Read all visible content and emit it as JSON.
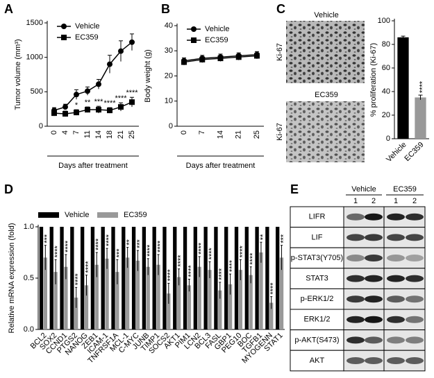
{
  "panel_labels": [
    "A",
    "B",
    "C",
    "D",
    "E"
  ],
  "chart_data": [
    {
      "type": "line",
      "ylabel": "Tumor volume (mm³)",
      "xlabel": "Days after treatment",
      "categories": [
        "0",
        "4",
        "7",
        "11",
        "14",
        "18",
        "21",
        "25"
      ],
      "series": [
        {
          "name": "Vehicle",
          "color": "#000000",
          "marker": "circle",
          "values": [
            230,
            280,
            460,
            510,
            610,
            900,
            1090,
            1220
          ],
          "errors": [
            40,
            40,
            70,
            60,
            70,
            130,
            150,
            120
          ]
        },
        {
          "name": "EC359",
          "color": "#000000",
          "marker": "square",
          "values": [
            190,
            180,
            200,
            240,
            240,
            230,
            280,
            350
          ],
          "errors": [
            40,
            40,
            40,
            40,
            50,
            40,
            60,
            70
          ]
        }
      ],
      "annotations": [
        null,
        null,
        "*",
        "**",
        "***",
        "****",
        "****",
        "****"
      ],
      "ylim": [
        0,
        1500
      ],
      "yticks": [
        0,
        500,
        1000,
        1500
      ],
      "legend": "upper left"
    },
    {
      "type": "line",
      "ylabel": "Body weight (g)",
      "xlabel": "Days after treatment",
      "categories": [
        "0",
        "7",
        "14",
        "21",
        "25"
      ],
      "series": [
        {
          "name": "Vehicle",
          "color": "#000000",
          "marker": "circle",
          "values": [
            26,
            27,
            27.5,
            28,
            28.5
          ],
          "errors": [
            1.2,
            1.2,
            1.2,
            1.2,
            1.2
          ]
        },
        {
          "name": "EC359",
          "color": "#000000",
          "marker": "square",
          "values": [
            25.5,
            26.5,
            27,
            27.5,
            28
          ],
          "errors": [
            1.2,
            1.2,
            1.2,
            1.2,
            1.2
          ]
        }
      ],
      "ylim": [
        0,
        40
      ],
      "yticks": [
        0,
        10,
        20,
        30,
        40
      ],
      "legend": "upper left"
    },
    {
      "type": "bar",
      "ylabel": "% proliferation (Ki-67)",
      "categories": [
        "Vehicle",
        "EC359"
      ],
      "values": [
        86,
        35
      ],
      "errors": [
        1,
        2
      ],
      "colors": [
        "#000000",
        "#999999"
      ],
      "annotations": [
        null,
        "****"
      ],
      "ylim": [
        0,
        100
      ],
      "yticks": [
        0,
        20,
        40,
        60,
        80,
        100
      ]
    },
    {
      "type": "bar",
      "ylabel": "Relative mRNA expression (fold)",
      "categories": [
        "BCL2",
        "SOX2",
        "CCND1",
        "PTGS2",
        "NANOG",
        "ZEB1",
        "ICAM-1",
        "TNFRSF1A",
        "MCL-1",
        "C-MYC",
        "JUNB",
        "TIMP1",
        "SOCS2",
        "AKT1",
        "PIM1",
        "LCN2",
        "BCL3",
        "FASL",
        "GBP1",
        "PEG10",
        "BOC",
        "TGFB1",
        "MYOGENN",
        "STAT1"
      ],
      "series": [
        {
          "name": "Vehicle",
          "color": "#000000",
          "values": [
            1,
            1,
            1,
            1,
            1,
            1,
            1,
            1,
            1,
            1,
            1,
            1,
            1,
            1,
            1,
            1,
            1,
            1,
            1,
            1,
            1,
            1,
            1,
            1
          ]
        },
        {
          "name": "EC359",
          "color": "#999999",
          "values": [
            0.7,
            0.56,
            0.61,
            0.31,
            0.43,
            0.63,
            0.69,
            0.56,
            0.7,
            0.67,
            0.61,
            0.63,
            0.35,
            0.51,
            0.43,
            0.61,
            0.58,
            0.38,
            0.44,
            0.58,
            0.53,
            0.75,
            0.26,
            0.7
          ],
          "errors": [
            0.12,
            0.12,
            0.12,
            0.1,
            0.1,
            0.12,
            0.1,
            0.12,
            0.1,
            0.1,
            0.08,
            0.1,
            0.1,
            0.08,
            0.06,
            0.1,
            0.08,
            0.08,
            0.1,
            0.1,
            0.08,
            0.1,
            0.06,
            0.12
          ]
        }
      ],
      "annotations": [
        "***",
        "****",
        "****",
        "****",
        "****",
        "****",
        "****",
        "***",
        "**",
        "***",
        "****",
        "****",
        "****",
        "****",
        "****",
        "****",
        "****",
        "****",
        "****",
        "****",
        "****",
        "**",
        "****",
        "***"
      ],
      "ylim": [
        0,
        1
      ],
      "yticks": [
        {
          "value": 0,
          "label": "0.0"
        },
        {
          "value": 0.5,
          "label": "0.5"
        },
        {
          "value": 1,
          "label": "1.0"
        }
      ],
      "legend": "top"
    }
  ],
  "micrographs": {
    "conditions": [
      "Vehicle",
      "EC359"
    ],
    "stain": [
      "Ki-67",
      "Ki-67"
    ]
  },
  "blot": {
    "groups": [
      "Vehicle",
      "EC359"
    ],
    "lanes": [
      "1",
      "2",
      "1",
      "2"
    ],
    "rows": [
      "LIFR",
      "LIF",
      "p-STAT3(Y705)",
      "STAT3",
      "p-ERK1/2",
      "ERK1/2",
      "p-AKT(S473)",
      "AKT"
    ]
  }
}
